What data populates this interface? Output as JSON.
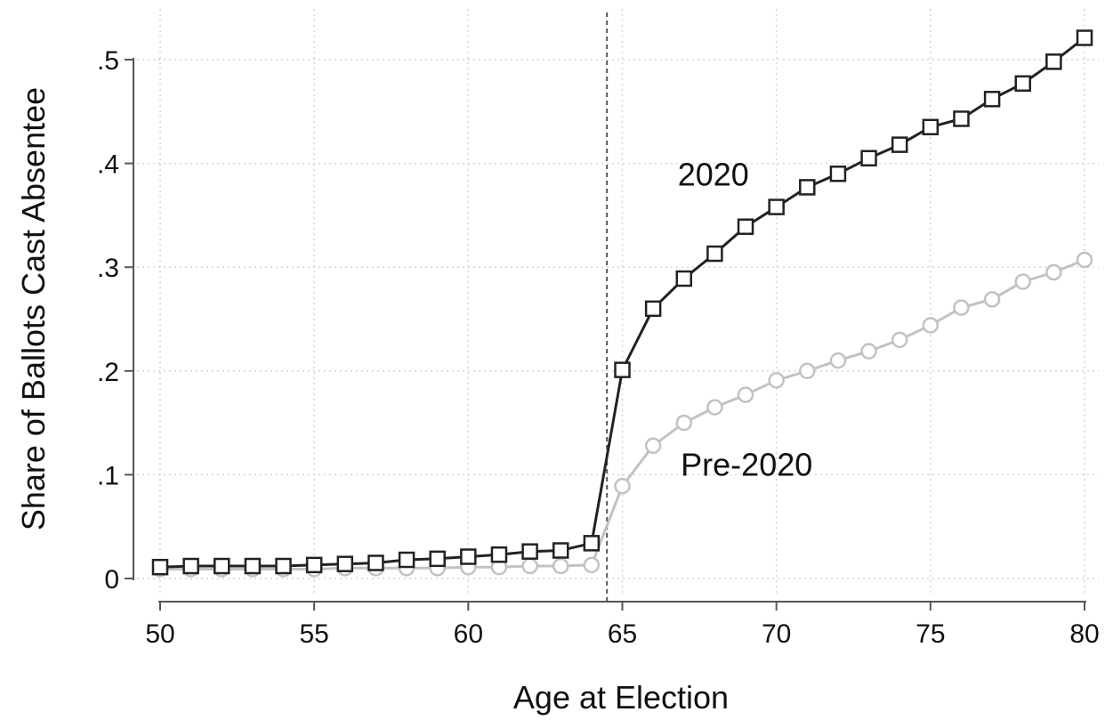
{
  "chart_data": {
    "type": "line",
    "title": "",
    "xlabel": "Age at Election",
    "ylabel": "Share of Ballots Cast Absentee",
    "xlim": [
      50,
      80
    ],
    "ylim": [
      0,
      0.52
    ],
    "x_ticks": [
      50,
      55,
      60,
      65,
      70,
      75,
      80
    ],
    "x_tick_labels": [
      "50",
      "55",
      "60",
      "65",
      "70",
      "75",
      "80"
    ],
    "y_ticks": [
      0,
      0.1,
      0.2,
      0.3,
      0.4,
      0.5
    ],
    "y_tick_labels": [
      "0",
      ".1",
      ".2",
      ".3",
      ".4",
      ".5"
    ],
    "grid": true,
    "reference_line": {
      "x": 64.5,
      "style": "dashed"
    },
    "x": [
      50,
      51,
      52,
      53,
      54,
      55,
      56,
      57,
      58,
      59,
      60,
      61,
      62,
      63,
      64,
      65,
      66,
      67,
      68,
      69,
      70,
      71,
      72,
      73,
      74,
      75,
      76,
      77,
      78,
      79,
      80
    ],
    "series": [
      {
        "name": "2020",
        "marker": "square",
        "color": "#222222",
        "values": [
          0.011,
          0.012,
          0.012,
          0.012,
          0.012,
          0.013,
          0.014,
          0.015,
          0.018,
          0.019,
          0.021,
          0.023,
          0.026,
          0.027,
          0.034,
          0.201,
          0.26,
          0.289,
          0.313,
          0.339,
          0.358,
          0.377,
          0.39,
          0.405,
          0.418,
          0.435,
          0.443,
          0.462,
          0.477,
          0.498,
          0.521
        ]
      },
      {
        "name": "Pre-2020",
        "marker": "circle",
        "color": "#c2c2c2",
        "values": [
          0.009,
          0.009,
          0.009,
          0.009,
          0.009,
          0.009,
          0.01,
          0.01,
          0.01,
          0.01,
          0.011,
          0.011,
          0.012,
          0.012,
          0.013,
          0.089,
          0.128,
          0.15,
          0.165,
          0.177,
          0.191,
          0.2,
          0.21,
          0.219,
          0.23,
          0.244,
          0.261,
          0.269,
          0.286,
          0.295,
          0.307
        ]
      }
    ],
    "series_labels": [
      {
        "text": "2020",
        "x": 67.2,
        "y": 0.39
      },
      {
        "text": "Pre-2020",
        "x": 67.3,
        "y": 0.11
      }
    ]
  }
}
